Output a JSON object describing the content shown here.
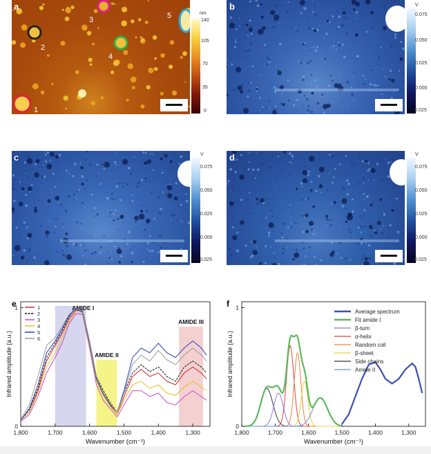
{
  "panels": {
    "a": {
      "label": "a",
      "colorbar": {
        "unit": "nm",
        "ticks": [
          "140",
          "105",
          "70",
          "35",
          "0"
        ]
      },
      "markers": [
        "1",
        "2",
        "3",
        "4",
        "5"
      ]
    },
    "b": {
      "label": "b",
      "colorbar": {
        "unit": "V",
        "ticks": [
          "0.075",
          "0.050",
          "0.025",
          "0.000",
          "-0.025"
        ]
      }
    },
    "c": {
      "label": "c",
      "colorbar": {
        "unit": "V",
        "ticks": [
          "0.075",
          "0.050",
          "0.025",
          "0.000",
          "-0.025"
        ]
      }
    },
    "d": {
      "label": "d",
      "colorbar": {
        "unit": "V",
        "ticks": [
          "0.075",
          "0.050",
          "0.025",
          "0.000",
          "-0.025"
        ]
      }
    }
  },
  "colors": {
    "marker1": "#e0203a",
    "marker2": "#222222",
    "marker3": "#e0208a",
    "marker4": "#30b040",
    "marker5": "#28a8e0",
    "amide1_band": "#c8c8e8",
    "amide2_band": "#f0f060",
    "amide3_band": "#f2c0c0"
  },
  "chart_data": [
    {
      "type": "line",
      "panel": "e",
      "xlabel": "Wavenumber (cm⁻¹)",
      "ylabel": "Infrared amplitude (a.u.)",
      "xlim": [
        1800,
        1250
      ],
      "ylim": [
        0,
        1.05
      ],
      "x_ticks": [
        "1,800",
        "1,700",
        "1,600",
        "1,500",
        "1,400",
        "1,300"
      ],
      "y_ticks": [
        "0",
        "1"
      ],
      "bands": [
        {
          "label": "AMIDE I",
          "from": 1700,
          "to": 1610
        },
        {
          "label": "AMIDE II",
          "from": 1580,
          "to": 1520
        },
        {
          "label": "AMIDE III",
          "from": 1340,
          "to": 1270
        }
      ],
      "x": [
        1800,
        1775,
        1750,
        1725,
        1700,
        1680,
        1660,
        1640,
        1620,
        1600,
        1580,
        1560,
        1540,
        1520,
        1500,
        1475,
        1450,
        1425,
        1400,
        1375,
        1350,
        1325,
        1300,
        1275,
        1260
      ],
      "series": [
        {
          "name": "1",
          "color": "#d62728",
          "values": [
            0.05,
            0.12,
            0.3,
            0.55,
            0.68,
            0.78,
            0.9,
            0.98,
            0.97,
            0.7,
            0.4,
            0.28,
            0.18,
            0.1,
            0.25,
            0.42,
            0.48,
            0.42,
            0.45,
            0.38,
            0.35,
            0.45,
            0.5,
            0.45,
            0.4
          ]
        },
        {
          "name": "2",
          "color": "#111111",
          "values": [
            0.05,
            0.14,
            0.32,
            0.58,
            0.7,
            0.8,
            0.92,
            1.0,
            0.98,
            0.72,
            0.42,
            0.3,
            0.2,
            0.12,
            0.28,
            0.45,
            0.52,
            0.46,
            0.5,
            0.42,
            0.38,
            0.5,
            0.55,
            0.5,
            0.45
          ]
        },
        {
          "name": "3",
          "color": "#cc44cc",
          "values": [
            0.04,
            0.1,
            0.25,
            0.45,
            0.58,
            0.7,
            0.86,
            0.95,
            0.94,
            0.66,
            0.35,
            0.22,
            0.15,
            0.08,
            0.18,
            0.3,
            0.3,
            0.25,
            0.28,
            0.2,
            0.18,
            0.25,
            0.3,
            0.25,
            0.22
          ]
        },
        {
          "name": "4",
          "color": "#e0c020",
          "values": [
            0.05,
            0.12,
            0.28,
            0.5,
            0.62,
            0.74,
            0.88,
            0.97,
            0.95,
            0.68,
            0.38,
            0.26,
            0.17,
            0.1,
            0.22,
            0.35,
            0.38,
            0.32,
            0.35,
            0.28,
            0.26,
            0.33,
            0.38,
            0.33,
            0.3
          ]
        },
        {
          "name": "5",
          "color": "#2040c0",
          "values": [
            0.05,
            0.15,
            0.35,
            0.62,
            0.72,
            0.82,
            0.93,
            0.99,
            0.96,
            0.7,
            0.4,
            0.27,
            0.18,
            0.12,
            0.3,
            0.58,
            0.66,
            0.62,
            0.7,
            0.62,
            0.58,
            0.66,
            0.72,
            0.66,
            0.6
          ]
        },
        {
          "name": "6",
          "color": "#999999",
          "values": [
            0.06,
            0.18,
            0.42,
            0.68,
            0.75,
            0.84,
            0.94,
            1.0,
            0.97,
            0.72,
            0.42,
            0.28,
            0.19,
            0.12,
            0.28,
            0.52,
            0.6,
            0.55,
            0.64,
            0.56,
            0.52,
            0.6,
            0.66,
            0.6,
            0.55
          ]
        }
      ],
      "legend": "top-left",
      "band_labels": {
        "amide1": "AMIDE I",
        "amide2": "AMIDE II",
        "amide3": "AMIDE III"
      }
    },
    {
      "type": "line",
      "panel": "f",
      "xlabel": "Wavenumber (cm⁻¹)",
      "ylabel": "Infrared amplitude (a.u.)",
      "xlim": [
        1800,
        1250
      ],
      "ylim": [
        0,
        1.05
      ],
      "x_ticks": [
        "1,800",
        "1,700",
        "1,600",
        "1,500",
        "1,400",
        "1,300"
      ],
      "y_ticks": [
        "0",
        "1"
      ],
      "legend": "top-right",
      "series": [
        {
          "name": "Average spectrum",
          "color": "#3a4fb5",
          "width": 2.2
        },
        {
          "name": "Fit amide I",
          "color": "#5cb85c",
          "width": 2.2
        },
        {
          "name": "β-turn",
          "color": "#8c7bd4",
          "width": 1
        },
        {
          "name": "α-helix",
          "color": "#e04040",
          "width": 1
        },
        {
          "name": "Random coil",
          "color": "#f08040",
          "width": 1
        },
        {
          "name": "β-sheet",
          "color": "#e8d040",
          "width": 1
        },
        {
          "name": "Side chains",
          "color": "#333333",
          "width": 1
        },
        {
          "name": "Amide II",
          "color": "#6a8fd0",
          "width": 1
        }
      ],
      "components": [
        {
          "name": "Side chains",
          "center": 1725,
          "height": 0.32,
          "sigma": 18
        },
        {
          "name": "β-turn",
          "center": 1690,
          "height": 0.28,
          "sigma": 14
        },
        {
          "name": "α-helix",
          "center": 1655,
          "height": 0.68,
          "sigma": 11
        },
        {
          "name": "Random coil",
          "center": 1633,
          "height": 0.62,
          "sigma": 10
        },
        {
          "name": "β-sheet",
          "center": 1612,
          "height": 0.38,
          "sigma": 10
        },
        {
          "name": "Amide II",
          "center": 1565,
          "height": 0.24,
          "sigma": 22
        }
      ],
      "average_points": {
        "x": [
          1500,
          1480,
          1460,
          1440,
          1420,
          1400,
          1385,
          1370,
          1350,
          1330,
          1310,
          1290,
          1280,
          1270,
          1260
        ],
        "y": [
          0.02,
          0.1,
          0.25,
          0.4,
          0.52,
          0.54,
          0.48,
          0.4,
          0.36,
          0.4,
          0.48,
          0.53,
          0.5,
          0.4,
          0.28
        ]
      }
    }
  ]
}
